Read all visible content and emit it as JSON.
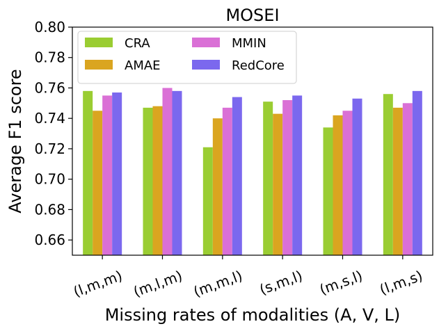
{
  "chart_data": {
    "type": "bar",
    "title": "MOSEI",
    "xlabel": "Missing rates of modalities (A, V, L)",
    "ylabel": "Average F1 score",
    "categories": [
      "(l,m,m)",
      "(m,l,m)",
      "(m,m,l)",
      "(s,m,l)",
      "(m,s,l)",
      "(l,m,s)"
    ],
    "ylim": [
      0.65,
      0.8
    ],
    "yticks": [
      "0.66",
      "0.68",
      "0.70",
      "0.72",
      "0.74",
      "0.76",
      "0.78",
      "0.80"
    ],
    "legend_position": "top-left",
    "legend_columns": 2,
    "grid": false,
    "series": [
      {
        "name": "CRA",
        "color": "#9ACD32",
        "values": [
          0.758,
          0.747,
          0.721,
          0.751,
          0.734,
          0.756
        ]
      },
      {
        "name": "AMAE",
        "color": "#DAA520",
        "values": [
          0.745,
          0.748,
          0.74,
          0.743,
          0.742,
          0.747
        ]
      },
      {
        "name": "MMIN",
        "color": "#DA70D6",
        "values": [
          0.755,
          0.76,
          0.747,
          0.752,
          0.745,
          0.75
        ]
      },
      {
        "name": "RedCore",
        "color": "#7B68EE",
        "values": [
          0.757,
          0.758,
          0.754,
          0.755,
          0.753,
          0.758
        ]
      }
    ]
  }
}
